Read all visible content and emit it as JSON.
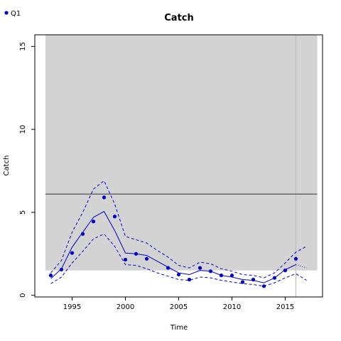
{
  "chart_data": {
    "type": "line",
    "title": "Catch",
    "xlabel": "Time",
    "ylabel": "Catch",
    "xlim": [
      1991.5,
      2018.5
    ],
    "ylim": [
      -0.1,
      15.7
    ],
    "x_ticks": [
      1995,
      2000,
      2005,
      2010,
      2015
    ],
    "y_ticks": [
      0,
      5,
      10,
      15
    ],
    "legend": {
      "placement": "top-left",
      "entries": [
        "Q1"
      ]
    },
    "colors": {
      "series": "#0000cc",
      "band": "#d3d3d3",
      "reference_line": "#666666",
      "vertical_line": "#bbbbbb"
    },
    "band": {
      "x_range": [
        1992.5,
        2018
      ],
      "y_range": [
        1.5,
        15.7
      ]
    },
    "reference_hline": 6.1,
    "vertical_line_x": 2016,
    "series": [
      {
        "name": "Q1",
        "style": "points",
        "x": [
          1993,
          1994,
          1995,
          1996,
          1997,
          1998,
          1999,
          2000,
          2001,
          2002,
          2004,
          2005,
          2006,
          2007,
          2008,
          2009,
          2010,
          2011,
          2012,
          2013,
          2014,
          2015,
          2016
        ],
        "values": [
          1.2,
          1.55,
          2.55,
          3.7,
          4.45,
          5.9,
          4.75,
          2.15,
          2.5,
          2.2,
          1.65,
          1.25,
          0.95,
          1.65,
          1.45,
          1.2,
          1.2,
          0.8,
          0.95,
          0.55,
          1.05,
          1.5,
          2.2
        ]
      },
      {
        "style": "solid",
        "x": [
          1993,
          1994,
          1995,
          1996,
          1997,
          1998,
          1999,
          2000,
          2001,
          2002,
          2003,
          2004,
          2005,
          2006,
          2007,
          2008,
          2009,
          2010,
          2011,
          2012,
          2013,
          2014,
          2015,
          2016
        ],
        "values": [
          1.0,
          1.6,
          2.9,
          3.8,
          4.7,
          5.05,
          3.9,
          2.55,
          2.5,
          2.4,
          2.05,
          1.7,
          1.35,
          1.25,
          1.5,
          1.45,
          1.2,
          1.1,
          0.95,
          0.9,
          0.75,
          1.05,
          1.55,
          1.85
        ]
      },
      {
        "style": "dashed",
        "x": [
          1993,
          1994,
          1995,
          1996,
          1997,
          1998,
          1999,
          2000,
          2001,
          2002,
          2003,
          2004,
          2005,
          2006,
          2007,
          2008,
          2009,
          2010,
          2011,
          2012,
          2013,
          2014,
          2015,
          2016,
          2017
        ],
        "values": [
          1.35,
          2.1,
          3.8,
          5.0,
          6.4,
          6.9,
          5.5,
          3.55,
          3.35,
          3.15,
          2.7,
          2.3,
          1.8,
          1.65,
          2.0,
          1.9,
          1.6,
          1.45,
          1.25,
          1.2,
          1.05,
          1.35,
          1.95,
          2.6,
          2.95
        ]
      },
      {
        "style": "dashed",
        "x": [
          1993,
          1994,
          1995,
          1996,
          1997,
          1998,
          1999,
          2000,
          2001,
          2002,
          2003,
          2004,
          2005,
          2006,
          2007,
          2008,
          2009,
          2010,
          2011,
          2012,
          2013,
          2014,
          2015,
          2016,
          2017
        ],
        "values": [
          0.7,
          1.1,
          1.95,
          2.65,
          3.4,
          3.7,
          2.95,
          1.85,
          1.8,
          1.6,
          1.35,
          1.15,
          0.95,
          0.9,
          1.1,
          1.05,
          0.9,
          0.8,
          0.7,
          0.65,
          0.55,
          0.75,
          1.05,
          1.3,
          0.9
        ]
      },
      {
        "style": "dotted",
        "x": [
          2016,
          2017
        ],
        "values": [
          1.85,
          1.65
        ]
      }
    ]
  }
}
